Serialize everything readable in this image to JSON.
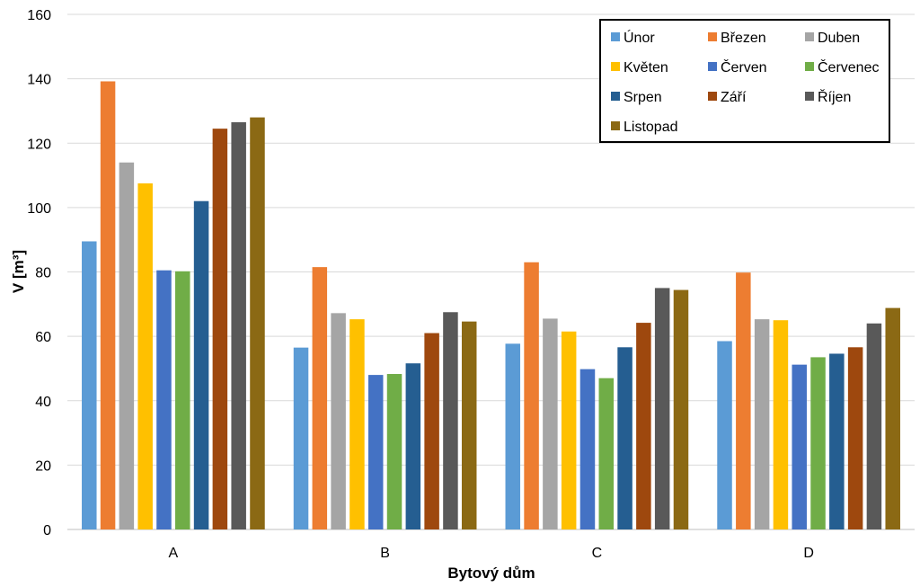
{
  "chart_data": {
    "type": "bar",
    "xlabel": "Bytový dům",
    "ylabel": "V [m³]",
    "ylim": [
      0,
      160
    ],
    "yticks": [
      0,
      20,
      40,
      60,
      80,
      100,
      120,
      140,
      160
    ],
    "grid": true,
    "legend_position": "top-right",
    "categories": [
      "A",
      "B",
      "C",
      "D"
    ],
    "series": [
      {
        "name": "Únor",
        "color": "#5b9bd5",
        "values": [
          89.5,
          56.5,
          57.7,
          58.5
        ]
      },
      {
        "name": "Březen",
        "color": "#ed7d31",
        "values": [
          139.2,
          81.5,
          83.0,
          79.8
        ]
      },
      {
        "name": "Duben",
        "color": "#a5a5a5",
        "values": [
          114.0,
          67.2,
          65.5,
          65.3
        ]
      },
      {
        "name": "Květen",
        "color": "#ffc000",
        "values": [
          107.5,
          65.3,
          61.5,
          65.0
        ]
      },
      {
        "name": "Červen",
        "color": "#4472c4",
        "values": [
          80.5,
          48.0,
          49.8,
          51.2
        ]
      },
      {
        "name": "Červenec",
        "color": "#70ad47",
        "values": [
          80.2,
          48.3,
          47.0,
          53.5
        ]
      },
      {
        "name": "Srpen",
        "color": "#255e91",
        "values": [
          102.0,
          51.6,
          56.6,
          54.6
        ]
      },
      {
        "name": "Září",
        "color": "#9e480e",
        "values": [
          124.5,
          61.0,
          64.2,
          56.6
        ]
      },
      {
        "name": "Říjen",
        "color": "#595959",
        "values": [
          126.5,
          67.5,
          75.0,
          64.0
        ]
      },
      {
        "name": "Listopad",
        "color": "#8b6914",
        "values": [
          128.0,
          64.6,
          74.4,
          68.8
        ]
      }
    ]
  }
}
